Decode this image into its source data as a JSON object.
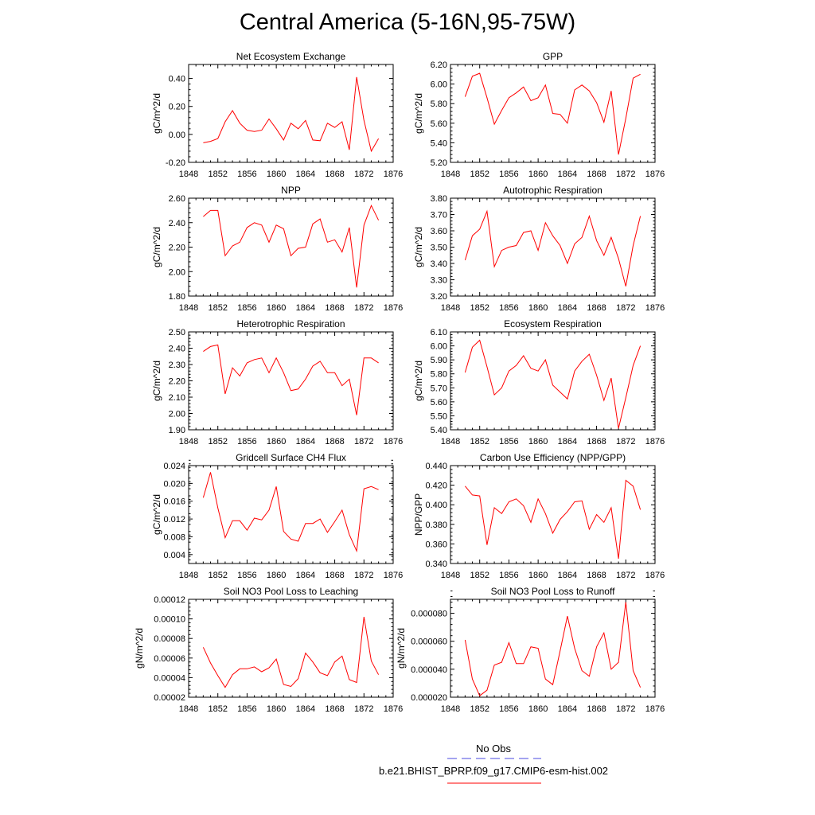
{
  "title": "Central America (5-16N,95-75W)",
  "colors": {
    "model": "#ff0000",
    "obs": "#4a4ae0",
    "axis": "#000000"
  },
  "legend": {
    "obs_label": "No Obs",
    "model_label": "b.e21.BHIST_BPRP.f09_g17.CMIP6-esm-hist.002"
  },
  "chart_data": [
    {
      "type": "line",
      "title": "Net Ecosystem Exchange",
      "ylabel": "gC/m^2/d",
      "xlim": [
        1848,
        1876
      ],
      "ylim": [
        -0.2,
        0.5
      ],
      "xticks": [
        "1848",
        "1852",
        "1856",
        "1860",
        "1864",
        "1868",
        "1872",
        "1876"
      ],
      "yticks": [
        "-0.20",
        "0.00",
        "0.20",
        "0.40"
      ],
      "x": [
        1850,
        1851,
        1852,
        1853,
        1854,
        1855,
        1856,
        1857,
        1858,
        1859,
        1860,
        1861,
        1862,
        1863,
        1864,
        1865,
        1866,
        1867,
        1868,
        1869,
        1870,
        1871,
        1872,
        1873,
        1874
      ],
      "series": [
        {
          "name": "b.e21.BHIST_BPRP.f09_g17.CMIP6-esm-hist.002",
          "values": [
            -0.06,
            -0.05,
            -0.03,
            0.09,
            0.17,
            0.08,
            0.03,
            0.02,
            0.03,
            0.11,
            0.04,
            -0.04,
            0.08,
            0.04,
            0.1,
            -0.04,
            -0.045,
            0.08,
            0.05,
            0.09,
            -0.11,
            0.41,
            0.1,
            -0.12,
            -0.03
          ]
        }
      ]
    },
    {
      "type": "line",
      "title": "GPP",
      "ylabel": "gC/m^2/d",
      "xlim": [
        1848,
        1876
      ],
      "ylim": [
        5.2,
        6.2
      ],
      "xticks": [
        "1848",
        "1852",
        "1856",
        "1860",
        "1864",
        "1868",
        "1872",
        "1876"
      ],
      "yticks": [
        "5.20",
        "5.40",
        "5.60",
        "5.80",
        "6.00",
        "6.20"
      ],
      "x": [
        1850,
        1851,
        1852,
        1853,
        1854,
        1855,
        1856,
        1857,
        1858,
        1859,
        1860,
        1861,
        1862,
        1863,
        1864,
        1865,
        1866,
        1867,
        1868,
        1869,
        1870,
        1871,
        1872,
        1873,
        1874
      ],
      "series": [
        {
          "name": "b.e21.BHIST_BPRP.f09_g17.CMIP6-esm-hist.002",
          "values": [
            5.87,
            6.08,
            6.11,
            5.86,
            5.59,
            5.73,
            5.86,
            5.91,
            5.97,
            5.83,
            5.86,
            5.99,
            5.7,
            5.69,
            5.6,
            5.94,
            5.99,
            5.93,
            5.81,
            5.61,
            5.93,
            5.28,
            5.65,
            6.06,
            6.1
          ]
        }
      ]
    },
    {
      "type": "line",
      "title": "NPP",
      "ylabel": "gC/m^2/d",
      "xlim": [
        1848,
        1876
      ],
      "ylim": [
        1.8,
        2.6
      ],
      "xticks": [
        "1848",
        "1852",
        "1856",
        "1860",
        "1864",
        "1868",
        "1872",
        "1876"
      ],
      "yticks": [
        "1.80",
        "2.00",
        "2.20",
        "2.40",
        "2.60"
      ],
      "x": [
        1850,
        1851,
        1852,
        1853,
        1854,
        1855,
        1856,
        1857,
        1858,
        1859,
        1860,
        1861,
        1862,
        1863,
        1864,
        1865,
        1866,
        1867,
        1868,
        1869,
        1870,
        1871,
        1872,
        1873,
        1874
      ],
      "series": [
        {
          "name": "b.e21.BHIST_BPRP.f09_g17.CMIP6-esm-hist.002",
          "values": [
            2.45,
            2.5,
            2.5,
            2.13,
            2.21,
            2.24,
            2.36,
            2.4,
            2.38,
            2.24,
            2.38,
            2.35,
            2.13,
            2.19,
            2.2,
            2.39,
            2.43,
            2.24,
            2.26,
            2.16,
            2.36,
            1.87,
            2.38,
            2.54,
            2.42
          ]
        }
      ]
    },
    {
      "type": "line",
      "title": "Autotrophic Respiration",
      "ylabel": "gC/m^2/d",
      "xlim": [
        1848,
        1876
      ],
      "ylim": [
        3.2,
        3.8
      ],
      "xticks": [
        "1848",
        "1852",
        "1856",
        "1860",
        "1864",
        "1868",
        "1872",
        "1876"
      ],
      "yticks": [
        "3.20",
        "3.30",
        "3.40",
        "3.50",
        "3.60",
        "3.70",
        "3.80"
      ],
      "x": [
        1850,
        1851,
        1852,
        1853,
        1854,
        1855,
        1856,
        1857,
        1858,
        1859,
        1860,
        1861,
        1862,
        1863,
        1864,
        1865,
        1866,
        1867,
        1868,
        1869,
        1870,
        1871,
        1872,
        1873,
        1874
      ],
      "series": [
        {
          "name": "b.e21.BHIST_BPRP.f09_g17.CMIP6-esm-hist.002",
          "values": [
            3.42,
            3.57,
            3.61,
            3.72,
            3.38,
            3.48,
            3.5,
            3.51,
            3.59,
            3.6,
            3.48,
            3.65,
            3.57,
            3.51,
            3.4,
            3.52,
            3.56,
            3.69,
            3.54,
            3.45,
            3.56,
            3.43,
            3.26,
            3.51,
            3.69
          ]
        }
      ]
    },
    {
      "type": "line",
      "title": "Heterotrophic Respiration",
      "ylabel": "gC/m^2/d",
      "xlim": [
        1848,
        1876
      ],
      "ylim": [
        1.9,
        2.5
      ],
      "xticks": [
        "1848",
        "1852",
        "1856",
        "1860",
        "1864",
        "1868",
        "1872",
        "1876"
      ],
      "yticks": [
        "1.90",
        "2.00",
        "2.10",
        "2.20",
        "2.30",
        "2.40",
        "2.50"
      ],
      "x": [
        1850,
        1851,
        1852,
        1853,
        1854,
        1855,
        1856,
        1857,
        1858,
        1859,
        1860,
        1861,
        1862,
        1863,
        1864,
        1865,
        1866,
        1867,
        1868,
        1869,
        1870,
        1871,
        1872,
        1873,
        1874
      ],
      "series": [
        {
          "name": "b.e21.BHIST_BPRP.f09_g17.CMIP6-esm-hist.002",
          "values": [
            2.38,
            2.41,
            2.42,
            2.12,
            2.28,
            2.23,
            2.31,
            2.33,
            2.34,
            2.25,
            2.34,
            2.25,
            2.14,
            2.15,
            2.21,
            2.29,
            2.32,
            2.25,
            2.25,
            2.17,
            2.21,
            1.99,
            2.34,
            2.34,
            2.31
          ]
        }
      ]
    },
    {
      "type": "line",
      "title": "Ecosystem Respiration",
      "ylabel": "gC/m^2/d",
      "xlim": [
        1848,
        1876
      ],
      "ylim": [
        5.4,
        6.1
      ],
      "xticks": [
        "1848",
        "1852",
        "1856",
        "1860",
        "1864",
        "1868",
        "1872",
        "1876"
      ],
      "yticks": [
        "5.40",
        "5.50",
        "5.60",
        "5.70",
        "5.80",
        "5.90",
        "6.00",
        "6.10"
      ],
      "x": [
        1850,
        1851,
        1852,
        1853,
        1854,
        1855,
        1856,
        1857,
        1858,
        1859,
        1860,
        1861,
        1862,
        1863,
        1864,
        1865,
        1866,
        1867,
        1868,
        1869,
        1870,
        1871,
        1872,
        1873,
        1874
      ],
      "series": [
        {
          "name": "b.e21.BHIST_BPRP.f09_g17.CMIP6-esm-hist.002",
          "values": [
            5.81,
            5.99,
            6.04,
            5.85,
            5.65,
            5.7,
            5.82,
            5.86,
            5.93,
            5.84,
            5.82,
            5.9,
            5.72,
            5.67,
            5.62,
            5.82,
            5.89,
            5.94,
            5.79,
            5.61,
            5.77,
            5.41,
            5.63,
            5.86,
            6.0
          ]
        }
      ]
    },
    {
      "type": "line",
      "title": "Gridcell Surface CH4 Flux",
      "ylabel": "gC/m^2/d",
      "xlim": [
        1848,
        1876
      ],
      "ylim": [
        0.002,
        0.024
      ],
      "xticks": [
        "1848",
        "1852",
        "1856",
        "1860",
        "1864",
        "1868",
        "1872",
        "1876"
      ],
      "yticks": [
        "0.004",
        "0.008",
        "0.012",
        "0.016",
        "0.020",
        "0.024"
      ],
      "x": [
        1850,
        1851,
        1852,
        1853,
        1854,
        1855,
        1856,
        1857,
        1858,
        1859,
        1860,
        1861,
        1862,
        1863,
        1864,
        1865,
        1866,
        1867,
        1868,
        1869,
        1870,
        1871,
        1872,
        1873,
        1874
      ],
      "series": [
        {
          "name": "b.e21.BHIST_BPRP.f09_g17.CMIP6-esm-hist.002",
          "values": [
            0.0168,
            0.0225,
            0.0145,
            0.0078,
            0.0116,
            0.0116,
            0.0095,
            0.0122,
            0.0118,
            0.014,
            0.0193,
            0.0092,
            0.0075,
            0.007,
            0.011,
            0.011,
            0.012,
            0.009,
            0.0114,
            0.014,
            0.0085,
            0.0048,
            0.0188,
            0.0193,
            0.0186
          ]
        }
      ]
    },
    {
      "type": "line",
      "title": "Carbon Use Efficiency (NPP/GPP)",
      "ylabel": "NPP/GPP",
      "xlim": [
        1848,
        1876
      ],
      "ylim": [
        0.34,
        0.44
      ],
      "xticks": [
        "1848",
        "1852",
        "1856",
        "1860",
        "1864",
        "1868",
        "1872",
        "1876"
      ],
      "yticks": [
        "0.340",
        "0.360",
        "0.380",
        "0.400",
        "0.420",
        "0.440"
      ],
      "x": [
        1850,
        1851,
        1852,
        1853,
        1854,
        1855,
        1856,
        1857,
        1858,
        1859,
        1860,
        1861,
        1862,
        1863,
        1864,
        1865,
        1866,
        1867,
        1868,
        1869,
        1870,
        1871,
        1872,
        1873,
        1874
      ],
      "series": [
        {
          "name": "b.e21.BHIST_BPRP.f09_g17.CMIP6-esm-hist.002",
          "values": [
            0.419,
            0.41,
            0.409,
            0.359,
            0.397,
            0.391,
            0.403,
            0.406,
            0.399,
            0.382,
            0.406,
            0.391,
            0.371,
            0.385,
            0.393,
            0.403,
            0.404,
            0.375,
            0.39,
            0.382,
            0.397,
            0.345,
            0.425,
            0.419,
            0.395
          ]
        }
      ]
    },
    {
      "type": "line",
      "title": "Soil NO3 Pool Loss to Leaching",
      "ylabel": "gN/m^2/d",
      "xlim": [
        1848,
        1876
      ],
      "ylim": [
        2e-05,
        0.00012
      ],
      "xticks": [
        "1848",
        "1852",
        "1856",
        "1860",
        "1864",
        "1868",
        "1872",
        "1876"
      ],
      "yticks": [
        "0.00002",
        "0.00004",
        "0.00006",
        "0.00008",
        "0.00010",
        "0.00012"
      ],
      "x": [
        1850,
        1851,
        1852,
        1853,
        1854,
        1855,
        1856,
        1857,
        1858,
        1859,
        1860,
        1861,
        1862,
        1863,
        1864,
        1865,
        1866,
        1867,
        1868,
        1869,
        1870,
        1871,
        1872,
        1873,
        1874
      ],
      "series": [
        {
          "name": "b.e21.BHIST_BPRP.f09_g17.CMIP6-esm-hist.002",
          "values": [
            7.1e-05,
            5.5e-05,
            4.2e-05,
            3e-05,
            4.3e-05,
            4.9e-05,
            4.9e-05,
            5.1e-05,
            4.6e-05,
            5e-05,
            5.9e-05,
            3.3e-05,
            3.1e-05,
            3.9e-05,
            6.5e-05,
            5.6e-05,
            4.5e-05,
            4.2e-05,
            5.6e-05,
            6.2e-05,
            3.8e-05,
            3.5e-05,
            0.000102,
            5.7e-05,
            4.3e-05
          ]
        }
      ]
    },
    {
      "type": "line",
      "title": "Soil NO3 Pool Loss to Runoff",
      "ylabel": "gN/m^2/d",
      "xlim": [
        1848,
        1876
      ],
      "ylim": [
        2e-05,
        9e-05
      ],
      "xticks": [
        "1848",
        "1852",
        "1856",
        "1860",
        "1864",
        "1868",
        "1872",
        "1876"
      ],
      "yticks": [
        "0.000020",
        "0.000040",
        "0.000060",
        "0.000080"
      ],
      "x": [
        1850,
        1851,
        1852,
        1853,
        1854,
        1855,
        1856,
        1857,
        1858,
        1859,
        1860,
        1861,
        1862,
        1863,
        1864,
        1865,
        1866,
        1867,
        1868,
        1869,
        1870,
        1871,
        1872,
        1873,
        1874
      ],
      "series": [
        {
          "name": "b.e21.BHIST_BPRP.f09_g17.CMIP6-esm-hist.002",
          "values": [
            6.1e-05,
            3.3e-05,
            2.1e-05,
            2.5e-05,
            4.3e-05,
            4.5e-05,
            5.9e-05,
            4.4e-05,
            4.4e-05,
            5.6e-05,
            5.5e-05,
            3.3e-05,
            2.9e-05,
            5.3e-05,
            7.8e-05,
            5.5e-05,
            3.9e-05,
            3.5e-05,
            5.6e-05,
            6.6e-05,
            4e-05,
            4.5e-05,
            8.8e-05,
            3.9e-05,
            2.7e-05
          ]
        }
      ]
    }
  ]
}
